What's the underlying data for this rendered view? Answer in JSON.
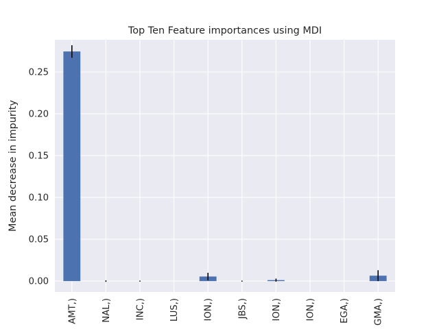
{
  "chart_data": {
    "type": "bar",
    "title": "Top Ten Feature importances using MDI",
    "xlabel": "",
    "ylabel": "Mean decrease in impurity",
    "categories": [
      "AMT,)",
      "NAL,)",
      "INC,)",
      "LUS,)",
      "ION,)",
      "JBS,)",
      "ION,)",
      "ION,)",
      "EGA,)",
      "GMA,)"
    ],
    "values": [
      0.2745,
      0.0,
      0.0,
      0.0,
      0.0055,
      0.0,
      0.0012,
      0.0,
      0.0,
      0.0065
    ],
    "errors": [
      0.0075,
      0.0008,
      0.0006,
      0.0,
      0.0045,
      0.0006,
      0.0018,
      0.0,
      0.0,
      0.0065
    ],
    "yticks": [
      0.0,
      0.05,
      0.1,
      0.15,
      0.2,
      0.25
    ],
    "ytick_labels": [
      "0.00",
      "0.05",
      "0.10",
      "0.15",
      "0.20",
      "0.25"
    ],
    "ylim": [
      -0.013,
      0.2885
    ],
    "grid": true,
    "colors": {
      "bar": "#4c72b0",
      "error_bar": "#000000",
      "plot_background": "#eaeaf2",
      "grid": "#ffffff",
      "text": "#262626"
    }
  }
}
